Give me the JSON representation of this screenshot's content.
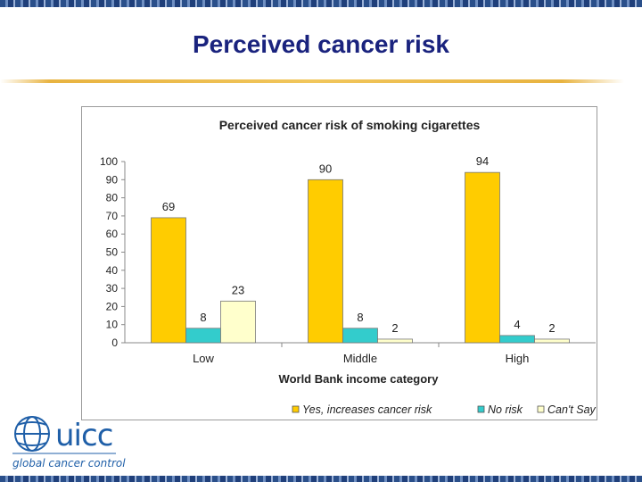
{
  "slide": {
    "title": "Perceived cancer risk"
  },
  "logo": {
    "name": "uicc",
    "tagline": "global cancer control"
  },
  "colors": {
    "title": "#1a237e",
    "yes": "#FFCC00",
    "no": "#33CCCC",
    "cant_say": "#FFFFCC"
  },
  "chart_data": {
    "type": "bar",
    "title": "Perceived cancer risk of smoking cigarettes",
    "xlabel": "World Bank income category",
    "ylabel": "",
    "ylim": [
      0,
      100
    ],
    "yticks": [
      0,
      10,
      20,
      30,
      40,
      50,
      60,
      70,
      80,
      90,
      100
    ],
    "categories": [
      "Low",
      "Middle",
      "High"
    ],
    "series": [
      {
        "name": "Yes, increases cancer risk",
        "values": [
          69,
          90,
          94
        ],
        "color": "#FFCC00"
      },
      {
        "name": "No risk",
        "values": [
          8,
          8,
          4
        ],
        "color": "#33CCCC"
      },
      {
        "name": "Can't Say",
        "values": [
          23,
          2,
          2
        ],
        "color": "#FFFFCC"
      }
    ],
    "grid": false,
    "legend": "bottom-right"
  }
}
